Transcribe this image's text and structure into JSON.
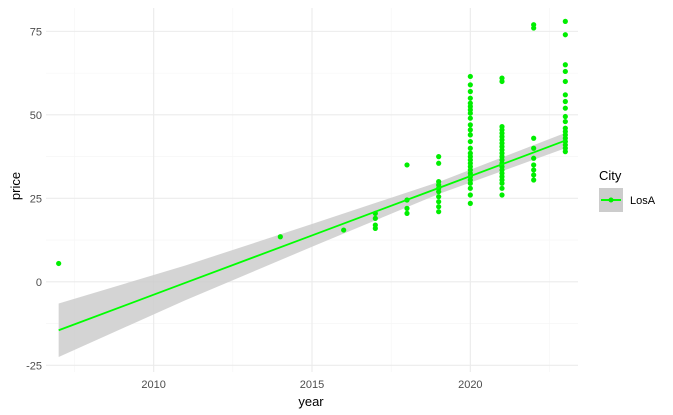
{
  "chart_data": {
    "type": "scatter",
    "xlabel": "year",
    "ylabel": "price",
    "xlim": [
      2006.6,
      2023.4
    ],
    "ylim": [
      -27,
      82
    ],
    "x_ticks": [
      2010,
      2015,
      2020
    ],
    "x_tick_labels": [
      "2010",
      "2015",
      "2020"
    ],
    "y_ticks": [
      -25,
      0,
      25,
      50,
      75
    ],
    "y_tick_labels": [
      "-25",
      "0",
      "25",
      "50",
      "75"
    ],
    "grid": true,
    "legend": {
      "title": "City",
      "placement": "right",
      "entries": [
        "LosA"
      ]
    },
    "colors": {
      "points": "#00ee00",
      "line": "#00ff00",
      "ribbon": "#cccccc",
      "grid_major": "#ebebeb",
      "grid_minor": "#f5f5f5"
    },
    "series": [
      {
        "name": "LosA",
        "points": [
          [
            2007,
            5.5
          ],
          [
            2014,
            13.5
          ],
          [
            2016,
            15.5
          ],
          [
            2017,
            16
          ],
          [
            2017,
            17
          ],
          [
            2017,
            19
          ],
          [
            2017,
            20.5
          ],
          [
            2018,
            20.5
          ],
          [
            2018,
            22
          ],
          [
            2018,
            24.5
          ],
          [
            2018,
            35
          ],
          [
            2019,
            21
          ],
          [
            2019,
            22.5
          ],
          [
            2019,
            24
          ],
          [
            2019,
            25.5
          ],
          [
            2019,
            27
          ],
          [
            2019,
            28
          ],
          [
            2019,
            29
          ],
          [
            2019,
            30
          ],
          [
            2019,
            35.5
          ],
          [
            2019,
            37.5
          ],
          [
            2020,
            23.5
          ],
          [
            2020,
            26
          ],
          [
            2020,
            28
          ],
          [
            2020,
            29.5
          ],
          [
            2020,
            30.5
          ],
          [
            2020,
            31.5
          ],
          [
            2020,
            32.5
          ],
          [
            2020,
            33.5
          ],
          [
            2020,
            34.5
          ],
          [
            2020,
            35.5
          ],
          [
            2020,
            36.5
          ],
          [
            2020,
            37.5
          ],
          [
            2020,
            38.5
          ],
          [
            2020,
            40
          ],
          [
            2020,
            42
          ],
          [
            2020,
            44
          ],
          [
            2020,
            45.5
          ],
          [
            2020,
            47
          ],
          [
            2020,
            49
          ],
          [
            2020,
            50.5
          ],
          [
            2020,
            51.5
          ],
          [
            2020,
            52.5
          ],
          [
            2020,
            53.5
          ],
          [
            2020,
            55
          ],
          [
            2020,
            57
          ],
          [
            2020,
            59
          ],
          [
            2020,
            61.5
          ],
          [
            2021,
            26
          ],
          [
            2021,
            28
          ],
          [
            2021,
            29.5
          ],
          [
            2021,
            30.5
          ],
          [
            2021,
            31.5
          ],
          [
            2021,
            32.5
          ],
          [
            2021,
            33.5
          ],
          [
            2021,
            34.5
          ],
          [
            2021,
            35.5
          ],
          [
            2021,
            36.5
          ],
          [
            2021,
            37.5
          ],
          [
            2021,
            38.5
          ],
          [
            2021,
            39.5
          ],
          [
            2021,
            40.5
          ],
          [
            2021,
            41.5
          ],
          [
            2021,
            42.5
          ],
          [
            2021,
            43.5
          ],
          [
            2021,
            44.5
          ],
          [
            2021,
            45.5
          ],
          [
            2021,
            46.5
          ],
          [
            2021,
            60
          ],
          [
            2021,
            61
          ],
          [
            2022,
            30.5
          ],
          [
            2022,
            32
          ],
          [
            2022,
            33.5
          ],
          [
            2022,
            35
          ],
          [
            2022,
            37
          ],
          [
            2022,
            40
          ],
          [
            2022,
            43
          ],
          [
            2022,
            76
          ],
          [
            2022,
            77
          ],
          [
            2023,
            39
          ],
          [
            2023,
            40
          ],
          [
            2023,
            41
          ],
          [
            2023,
            42
          ],
          [
            2023,
            43
          ],
          [
            2023,
            44
          ],
          [
            2023,
            45
          ],
          [
            2023,
            46
          ],
          [
            2023,
            48
          ],
          [
            2023,
            49.5
          ],
          [
            2023,
            52
          ],
          [
            2023,
            54
          ],
          [
            2023,
            56
          ],
          [
            2023,
            60
          ],
          [
            2023,
            63
          ],
          [
            2023,
            65
          ],
          [
            2023,
            74
          ],
          [
            2023,
            78
          ]
        ],
        "trend": {
          "x": [
            2007,
            2011,
            2015,
            2019,
            2023
          ],
          "y": [
            -14.5,
            -0.3,
            13.9,
            28.1,
            42.3
          ],
          "ci_low": [
            -22.5,
            -5.5,
            10.5,
            26.3,
            40.0
          ],
          "ci_high": [
            -6.5,
            4.9,
            17.3,
            29.9,
            44.6
          ]
        }
      }
    ]
  }
}
